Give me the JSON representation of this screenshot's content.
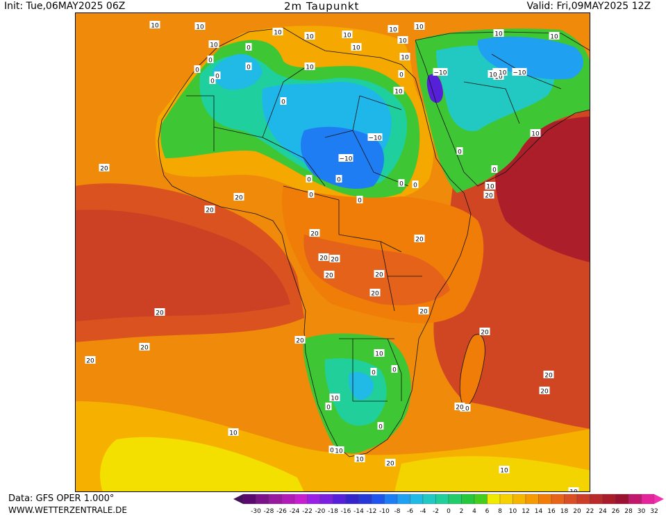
{
  "header": {
    "init": "Init: Tue,06MAY2025 06Z",
    "title": "2m Taupunkt",
    "valid": "Valid: Fri,09MAY2025 12Z"
  },
  "footer": {
    "data_source": "Data: GFS OPER 1.000°",
    "website": "WWW.WETTERZENTRALE.DE"
  },
  "legend": {
    "ticks": [
      "-30",
      "-28",
      "-26",
      "-24",
      "-22",
      "-20",
      "-18",
      "-16",
      "-14",
      "-12",
      "-10",
      "-8",
      "-6",
      "-4",
      "-2",
      "0",
      "2",
      "4",
      "6",
      "8",
      "10",
      "12",
      "14",
      "16",
      "18",
      "20",
      "22",
      "24",
      "26",
      "28",
      "30",
      "32"
    ],
    "colors": [
      "#5a0a6e",
      "#7a1387",
      "#96199e",
      "#b01db6",
      "#c520cf",
      "#9a20e6",
      "#7a20e0",
      "#5520d8",
      "#3325c9",
      "#2638d6",
      "#1f55ee",
      "#1f7df4",
      "#1fa0f0",
      "#21b9e6",
      "#22c9c2",
      "#21cf9a",
      "#22cc6a",
      "#25c83c",
      "#44cd1f",
      "#f0ea00",
      "#f6d000",
      "#f6b500",
      "#f59a00",
      "#ef7d08",
      "#e66419",
      "#d94e24",
      "#cc3d28",
      "#b92a2a",
      "#a91c2a",
      "#9a1230",
      "#c0196c",
      "#e4249b"
    ],
    "arrow_left_color": "#45105a",
    "arrow_right_color": "#f032ae"
  },
  "map": {
    "contour_labels": [
      {
        "text": "10"
      },
      {
        "text": "10"
      },
      {
        "text": "10"
      },
      {
        "text": "10"
      },
      {
        "text": "10"
      },
      {
        "text": "10"
      },
      {
        "text": "10"
      },
      {
        "text": "10"
      },
      {
        "text": "10"
      },
      {
        "text": "10"
      },
      {
        "text": "10"
      },
      {
        "text": "10"
      },
      {
        "text": "10"
      },
      {
        "text": "10"
      },
      {
        "text": "10"
      },
      {
        "text": "0"
      },
      {
        "text": "0"
      },
      {
        "text": "0"
      },
      {
        "text": "0"
      },
      {
        "text": "0"
      },
      {
        "text": "0"
      },
      {
        "text": "0"
      },
      {
        "text": "0"
      },
      {
        "text": "0"
      },
      {
        "text": "0"
      },
      {
        "text": "0"
      },
      {
        "text": "0"
      },
      {
        "text": "0"
      },
      {
        "text": "0"
      },
      {
        "text": "0"
      },
      {
        "text": "−10"
      },
      {
        "text": "−10"
      },
      {
        "text": "−10"
      },
      {
        "text": "−10"
      },
      {
        "text": "−10"
      },
      {
        "text": "20"
      },
      {
        "text": "20"
      },
      {
        "text": "20"
      },
      {
        "text": "20"
      },
      {
        "text": "20"
      },
      {
        "text": "20"
      },
      {
        "text": "20"
      },
      {
        "text": "20"
      },
      {
        "text": "20"
      },
      {
        "text": "20"
      },
      {
        "text": "20"
      },
      {
        "text": "20"
      },
      {
        "text": "20"
      },
      {
        "text": "20"
      },
      {
        "text": "20"
      },
      {
        "text": "20"
      },
      {
        "text": "20"
      },
      {
        "text": "20"
      },
      {
        "text": "20"
      },
      {
        "text": "20"
      },
      {
        "text": "10"
      },
      {
        "text": "10"
      },
      {
        "text": "10"
      },
      {
        "text": "10"
      },
      {
        "text": "10"
      },
      {
        "text": "10"
      },
      {
        "text": "10"
      },
      {
        "text": "10"
      },
      {
        "text": "0"
      },
      {
        "text": "0"
      },
      {
        "text": "0"
      },
      {
        "text": "0"
      },
      {
        "text": "0"
      },
      {
        "text": "0"
      },
      {
        "text": "10"
      },
      {
        "text": "10"
      },
      {
        "text": "10"
      },
      {
        "text": "10"
      },
      {
        "text": "20"
      },
      {
        "text": "20"
      }
    ]
  }
}
